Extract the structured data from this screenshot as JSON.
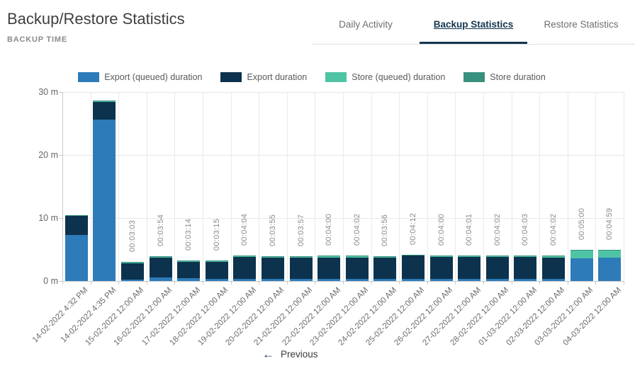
{
  "page": {
    "title": "Backup/Restore Statistics",
    "subtitle": "BACKUP TIME"
  },
  "tabs": [
    {
      "label": "Daily Activity",
      "active": false
    },
    {
      "label": "Backup Statistics",
      "active": true
    },
    {
      "label": "Restore Statistics",
      "active": false
    }
  ],
  "footer": {
    "arrow_icon": "←",
    "previous_label": "Previous"
  },
  "colors": {
    "export_queued": "#2d7bb9",
    "export": "#0d324d",
    "store_queued": "#4fc4a4",
    "store": "#38917e",
    "tab_active": "#14364f"
  },
  "chart_data": {
    "type": "bar",
    "stacked": true,
    "title": "BACKUP TIME",
    "unit": "minutes",
    "ylim": [
      0,
      30
    ],
    "y_ticks": [
      {
        "value": 0,
        "label": "0 m"
      },
      {
        "value": 10,
        "label": "10 m"
      },
      {
        "value": 20,
        "label": "20 m"
      },
      {
        "value": 30,
        "label": "30 m"
      }
    ],
    "grid": true,
    "legend_position": "top",
    "legend": [
      {
        "name": "Export (queued) duration",
        "color": "#2d7bb9"
      },
      {
        "name": "Export duration",
        "color": "#0d324d"
      },
      {
        "name": "Store (queued) duration",
        "color": "#4fc4a4"
      },
      {
        "name": "Store duration",
        "color": "#38917e"
      }
    ],
    "categories": [
      "14-02-2022 4:32 PM",
      "14-02-2022 4:35 PM",
      "15-02-2022 12:00 AM",
      "16-02-2022 12:00 AM",
      "17-02-2022 12:00 AM",
      "18-02-2022 12:00 AM",
      "19-02-2022 12:00 AM",
      "20-02-2022 12:00 AM",
      "21-02-2022 12:00 AM",
      "22-02-2022 12:00 AM",
      "23-02-2022 12:00 AM",
      "24-02-2022 12:00 AM",
      "25-02-2022 12:00 AM",
      "26-02-2022 12:00 AM",
      "27-02-2022 12:00 AM",
      "28-02-2022 12:00 AM",
      "01-03-2022 12:00 AM",
      "02-03-2022 12:00 AM",
      "03-03-2022 12:00 AM",
      "04-03-2022 12:00 AM"
    ],
    "bar_labels": [
      "",
      "",
      "00:03:03",
      "00:03:54",
      "00:03:14",
      "00:03:15",
      "00:04:04",
      "00:03:55",
      "00:03:57",
      "00:04:00",
      "00:04:02",
      "00:03:56",
      "00:04:12",
      "00:04:00",
      "00:04:01",
      "00:04:02",
      "00:04:03",
      "00:04:02",
      "00:05:00",
      "00:04:59"
    ],
    "series": [
      {
        "name": "Export (queued) duration",
        "color": "#2d7bb9",
        "values": [
          7.3,
          25.6,
          0.25,
          0.55,
          0.5,
          0.35,
          0.35,
          0.3,
          0.3,
          0.3,
          0.35,
          0.3,
          0.3,
          0.35,
          0.3,
          0.3,
          0.3,
          0.3,
          3.6,
          3.7
        ]
      },
      {
        "name": "Export duration",
        "color": "#0d324d",
        "values": [
          3.0,
          2.8,
          2.62,
          3.17,
          2.55,
          2.72,
          3.52,
          3.42,
          3.45,
          3.45,
          3.4,
          3.4,
          3.72,
          3.42,
          3.49,
          3.5,
          3.52,
          3.45,
          0,
          0
        ]
      },
      {
        "name": "Store (queued) duration",
        "color": "#4fc4a4",
        "values": [
          0.12,
          0.12,
          0.1,
          0.1,
          0.1,
          0.1,
          0.12,
          0.12,
          0.12,
          0.15,
          0.18,
          0.15,
          0.1,
          0.15,
          0.15,
          0.15,
          0.15,
          0.2,
          1.25,
          1.15
        ]
      },
      {
        "name": "Store duration",
        "color": "#38917e",
        "values": [
          0.08,
          0.08,
          0.08,
          0.08,
          0.08,
          0.08,
          0.08,
          0.08,
          0.08,
          0.1,
          0.1,
          0.08,
          0.08,
          0.08,
          0.08,
          0.08,
          0.08,
          0.08,
          0.15,
          0.13
        ]
      }
    ]
  }
}
